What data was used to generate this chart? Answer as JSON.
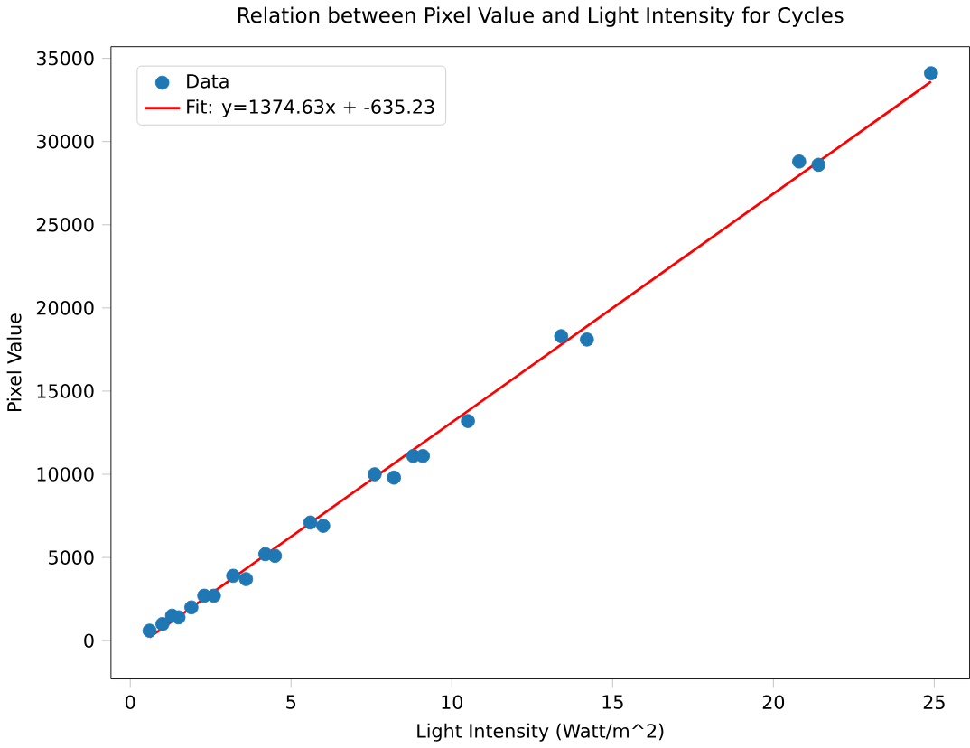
{
  "chart_data": {
    "type": "scatter",
    "title": "Relation between Pixel Value and Light Intensity for Cycles",
    "xlabel": "Light Intensity (Watt/m^2)",
    "ylabel": "Pixel Value",
    "xlim": [
      -0.6,
      26.1
    ],
    "ylim": [
      -2300,
      35700
    ],
    "xticks": [
      0,
      5,
      10,
      15,
      20,
      25
    ],
    "yticks": [
      0,
      5000,
      10000,
      15000,
      20000,
      25000,
      30000,
      35000
    ],
    "legend": "top left",
    "series": [
      {
        "name": "Data",
        "color": "#1f77b4",
        "x": [
          0.6,
          1.0,
          1.3,
          1.5,
          1.9,
          2.3,
          2.6,
          3.2,
          3.6,
          4.2,
          4.5,
          5.6,
          6.0,
          7.6,
          8.2,
          8.8,
          9.1,
          10.5,
          13.4,
          14.2,
          20.8,
          21.4,
          24.9
        ],
        "values": [
          600,
          1000,
          1500,
          1400,
          2000,
          2700,
          2700,
          3900,
          3700,
          5200,
          5100,
          7100,
          6900,
          10000,
          9800,
          11100,
          11100,
          13200,
          18300,
          18100,
          28800,
          28600,
          34100
        ]
      },
      {
        "name": "Fit: y=1374.63x + -635.23",
        "type": "line",
        "color": "#ff0000",
        "x": [
          0.6,
          24.9
        ],
        "values": [
          200,
          33600
        ]
      }
    ]
  }
}
